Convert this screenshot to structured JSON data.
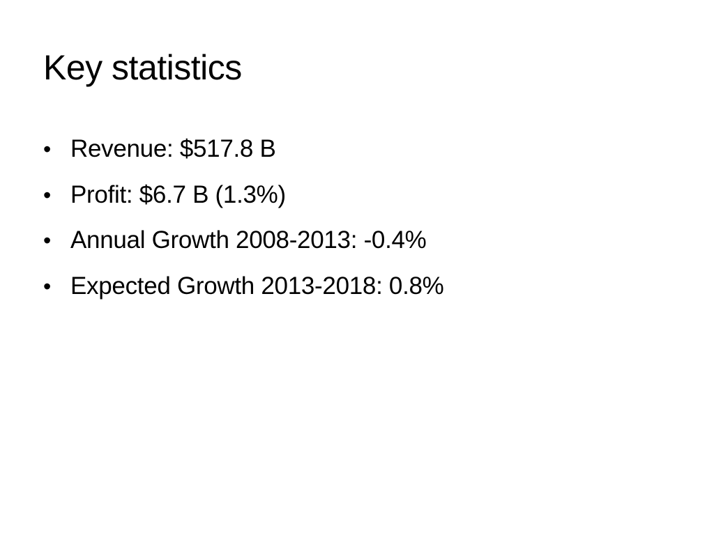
{
  "slide": {
    "title": "Key statistics",
    "bullet_symbol": "•",
    "bullets": [
      "Revenue: $517.8 B",
      "Profit: $6.7 B (1.3%)",
      "Annual Growth 2008-2013: -0.4%",
      "Expected Growth 2013-2018: 0.8%"
    ]
  }
}
